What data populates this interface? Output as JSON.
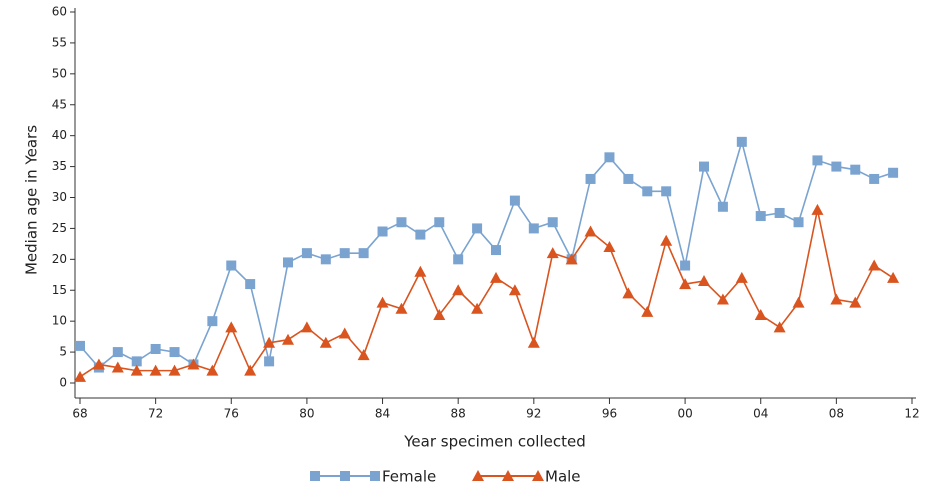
{
  "chart_data": {
    "type": "line",
    "x_label": "Year specimen collected",
    "y_label": "Median age in Years",
    "x": [
      1968,
      1969,
      1970,
      1971,
      1972,
      1973,
      1974,
      1975,
      1976,
      1977,
      1978,
      1979,
      1980,
      1981,
      1982,
      1983,
      1984,
      1985,
      1986,
      1987,
      1988,
      1989,
      1990,
      1991,
      1992,
      1993,
      1994,
      1995,
      1996,
      1997,
      1998,
      1999,
      2000,
      2001,
      2002,
      2003,
      2004,
      2005,
      2006,
      2007,
      2008,
      2009,
      2010,
      2011
    ],
    "series": [
      {
        "name": "Female",
        "color": "#7aa3d0",
        "marker": "square",
        "values": [
          6,
          2.5,
          5,
          3.5,
          5.5,
          5,
          3,
          10,
          19,
          16,
          3.5,
          19.5,
          21,
          20,
          21,
          21,
          24.5,
          26,
          24,
          26,
          20,
          25,
          21.5,
          29.5,
          25,
          26,
          20,
          33,
          36.5,
          33,
          31,
          31,
          19,
          35,
          28.5,
          39,
          27,
          27.5,
          26,
          36,
          35,
          34.5,
          33,
          34
        ]
      },
      {
        "name": "Male",
        "color": "#d9541e",
        "marker": "triangle",
        "values": [
          1,
          3,
          2.5,
          2,
          2,
          2,
          3,
          2,
          9,
          2,
          6.5,
          7,
          9,
          6.5,
          8,
          4.5,
          13,
          12,
          18,
          11,
          15,
          12,
          17,
          15,
          6.5,
          21,
          20,
          24.5,
          22,
          14.5,
          11.5,
          23,
          16,
          16.5,
          13.5,
          17,
          11,
          9,
          13,
          28,
          13.5,
          13,
          19,
          17
        ]
      }
    ],
    "xlim": [
      1968,
      2012
    ],
    "xticks": [
      {
        "value": 1968,
        "label": "68"
      },
      {
        "value": 1972,
        "label": "72"
      },
      {
        "value": 1976,
        "label": "76"
      },
      {
        "value": 1980,
        "label": "80"
      },
      {
        "value": 1984,
        "label": "84"
      },
      {
        "value": 1988,
        "label": "88"
      },
      {
        "value": 1992,
        "label": "92"
      },
      {
        "value": 1996,
        "label": "96"
      },
      {
        "value": 2000,
        "label": "00"
      },
      {
        "value": 2004,
        "label": "04"
      },
      {
        "value": 2008,
        "label": "08"
      },
      {
        "value": 2012,
        "label": "12"
      }
    ],
    "ylim": [
      0,
      60
    ],
    "yticks": [
      0,
      5,
      10,
      15,
      20,
      25,
      30,
      35,
      40,
      45,
      50,
      55,
      60
    ],
    "grid": false,
    "legend": "bottom"
  }
}
